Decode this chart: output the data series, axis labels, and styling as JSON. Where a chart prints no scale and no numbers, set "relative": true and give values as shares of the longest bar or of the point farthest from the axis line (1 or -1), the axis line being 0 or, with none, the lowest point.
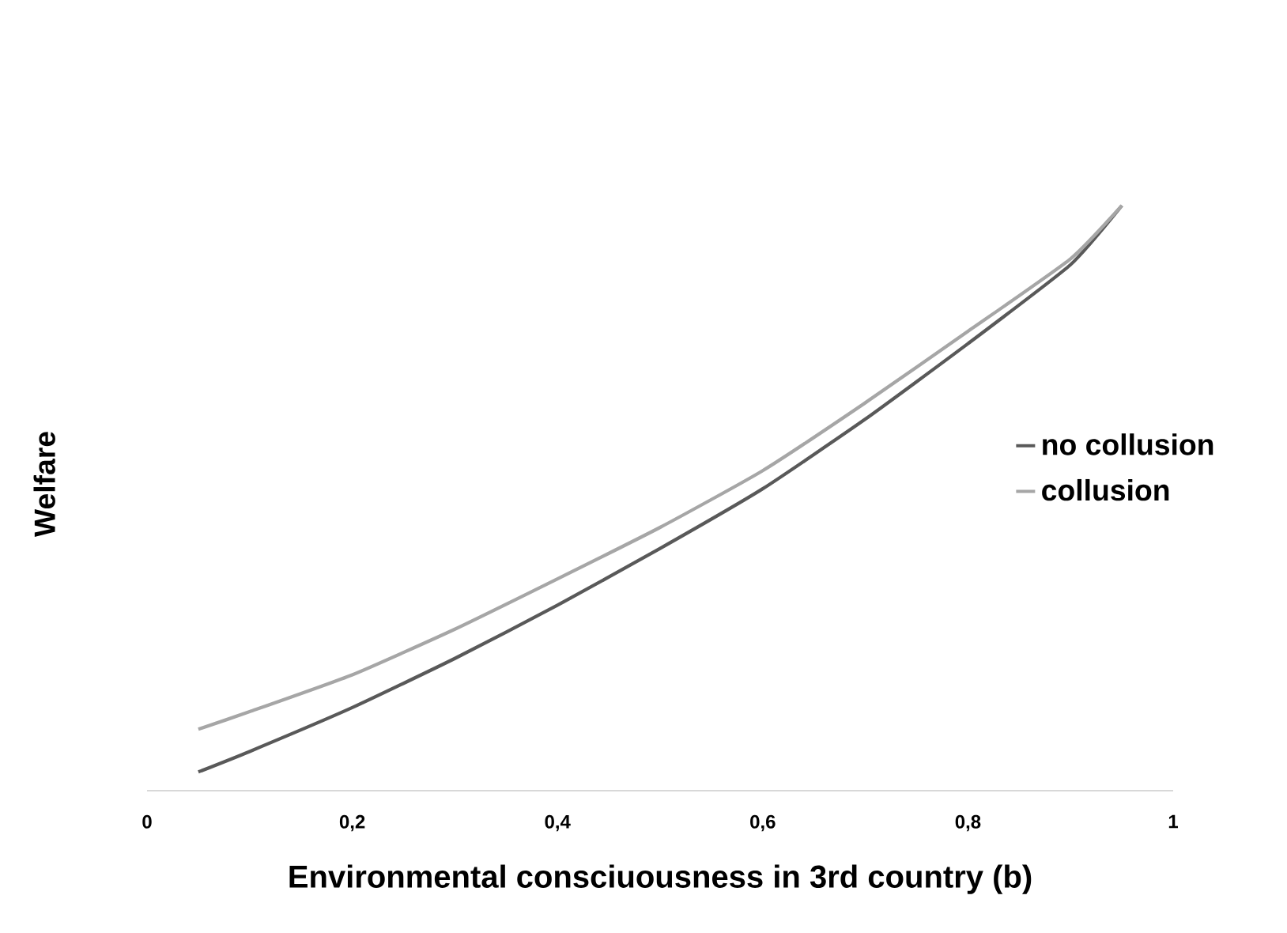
{
  "chart_data": {
    "type": "line",
    "relative": true,
    "xlabel": "Environmental consciuousness in 3rd country (b)",
    "ylabel": "Welfare",
    "xlim": [
      0,
      1
    ],
    "xticks": [
      0,
      {
        "value": 0.2,
        "label": "0,2"
      },
      {
        "value": 0.4,
        "label": "0,4"
      },
      {
        "value": 0.6,
        "label": "0,6"
      },
      {
        "value": 0.8,
        "label": "0,8"
      },
      1
    ],
    "legend": "right",
    "grid": false,
    "series": [
      {
        "name": "no collusion",
        "color": "#595959",
        "x": [
          0.05,
          0.1,
          0.2,
          0.3,
          0.4,
          0.5,
          0.6,
          0.7,
          0.8,
          0.9,
          0.95
        ],
        "values": [
          0.032,
          0.067,
          0.142,
          0.226,
          0.317,
          0.414,
          0.516,
          0.635,
          0.764,
          0.899,
          1
        ]
      },
      {
        "name": "collusion",
        "color": "#a6a6a6",
        "x": [
          0.05,
          0.1,
          0.2,
          0.3,
          0.4,
          0.5,
          0.6,
          0.7,
          0.8,
          0.9,
          0.95
        ],
        "values": [
          0.105,
          0.135,
          0.198,
          0.276,
          0.362,
          0.45,
          0.547,
          0.663,
          0.785,
          0.909,
          1
        ]
      }
    ]
  }
}
